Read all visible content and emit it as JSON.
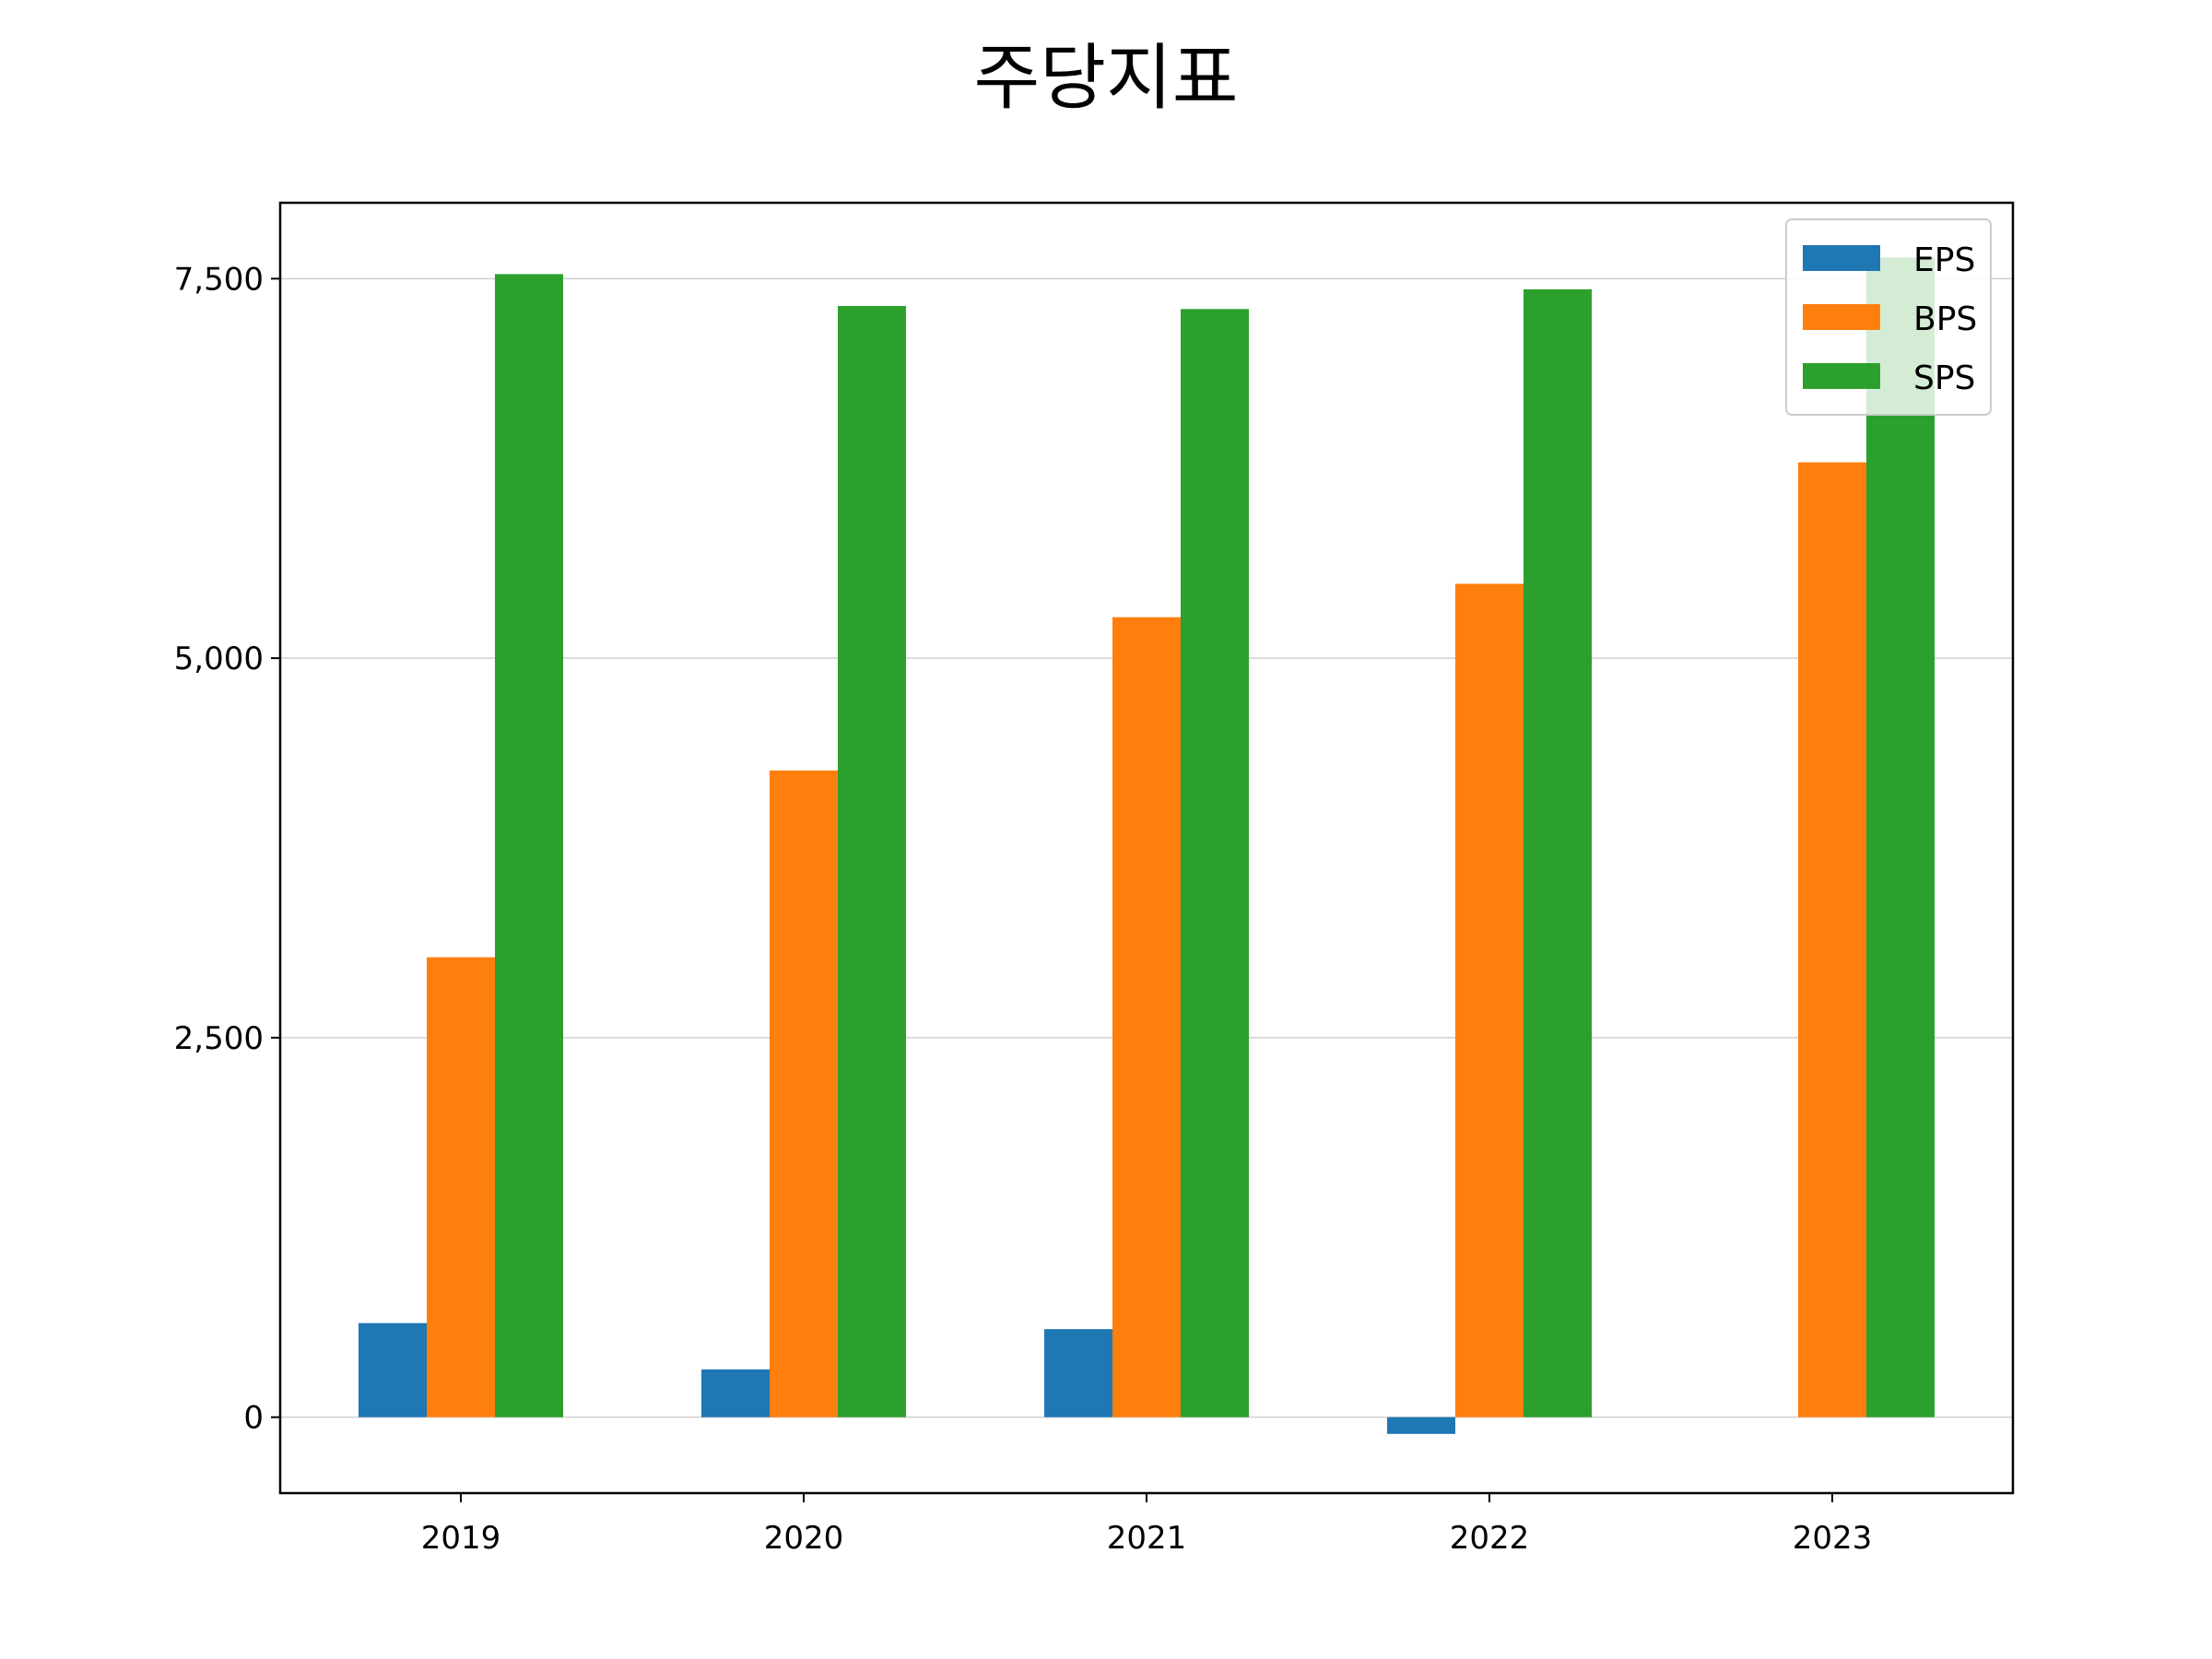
{
  "chart_data": {
    "type": "bar",
    "title": "주당지표",
    "xlabel": "",
    "ylabel": "",
    "categories": [
      "2019",
      "2020",
      "2021",
      "2022",
      "2023"
    ],
    "series": [
      {
        "name": "EPS",
        "color": "#1f77b4",
        "values": [
          620,
          315,
          580,
          -110,
          0
        ]
      },
      {
        "name": "BPS",
        "color": "#ff7f0e",
        "values": [
          3030,
          4260,
          5270,
          5490,
          6290
        ]
      },
      {
        "name": "SPS",
        "color": "#2ca02c",
        "values": [
          7530,
          7320,
          7300,
          7430,
          7640
        ]
      }
    ],
    "ylim": [
      -500,
      8000
    ],
    "yticks": [
      0,
      2500,
      5000,
      7500
    ],
    "ytick_labels": [
      "0",
      "2,500",
      "5,000",
      "7,500"
    ],
    "grid": "horizontal",
    "legend_position": "top-right"
  }
}
